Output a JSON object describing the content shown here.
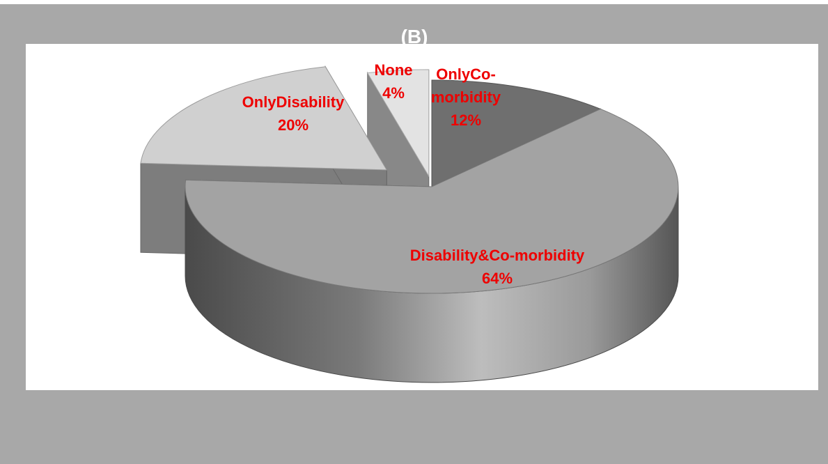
{
  "chart_data": {
    "type": "pie",
    "title": "(B)",
    "labels_3d": true,
    "categories": [
      "Only\u0002Co-\nmorbidity",
      "Disability&Co-morbidity",
      "Only\u0002Disability",
      "None"
    ],
    "values": [
      12,
      64,
      20,
      4
    ],
    "value_labels": [
      "12%",
      "64%",
      "20%",
      "4%"
    ],
    "colors": [
      "#6f6f6f",
      "#a3a3a3",
      "#d0d0d0",
      "#e3e3e3"
    ],
    "label_color": "#ee0000"
  },
  "style": {
    "frame_color": "#a8a8a8",
    "plot_background": "#ffffff"
  }
}
